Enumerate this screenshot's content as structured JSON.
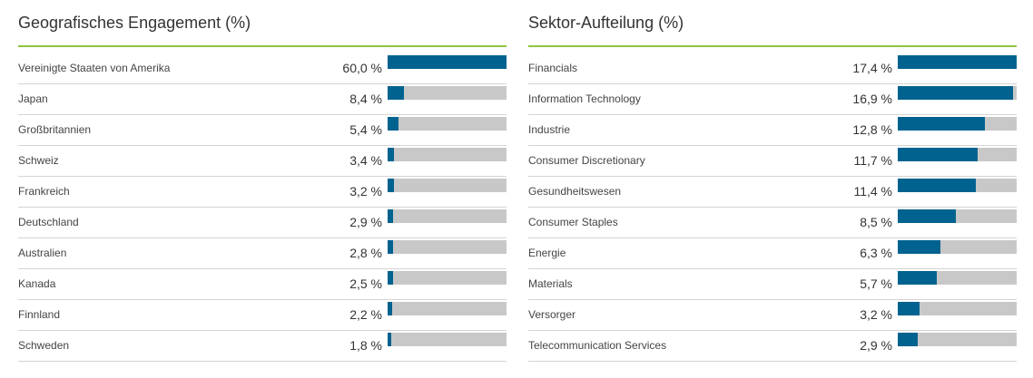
{
  "chart_data": [
    {
      "type": "bar",
      "title": "Geografisches Engagement (%)",
      "max": 60.0,
      "categories": [
        "Vereinigte Staaten von Amerika",
        "Japan",
        "Großbritannien",
        "Schweiz",
        "Frankreich",
        "Deutschland",
        "Australien",
        "Kanada",
        "Finnland",
        "Schweden"
      ],
      "values": [
        60.0,
        8.4,
        5.4,
        3.4,
        3.2,
        2.9,
        2.8,
        2.5,
        2.2,
        1.8
      ],
      "value_labels": [
        "60,0 %",
        "8,4 %",
        "5,4 %",
        "3,4 %",
        "3,2 %",
        "2,9 %",
        "2,8 %",
        "2,5 %",
        "2,2 %",
        "1,8 %"
      ]
    },
    {
      "type": "bar",
      "title": "Sektor-Aufteilung (%)",
      "max": 17.4,
      "categories": [
        "Financials",
        "Information Technology",
        "Industrie",
        "Consumer Discretionary",
        "Gesundheitswesen",
        "Consumer Staples",
        "Energie",
        "Materials",
        "Versorger",
        "Telecommunication Services"
      ],
      "values": [
        17.4,
        16.9,
        12.8,
        11.7,
        11.4,
        8.5,
        6.3,
        5.7,
        3.2,
        2.9
      ],
      "value_labels": [
        "17,4 %",
        "16,9 %",
        "12,8 %",
        "11,7 %",
        "11,4 %",
        "8,5 %",
        "6,3 %",
        "5,7 %",
        "3,2 %",
        "2,9 %"
      ]
    }
  ],
  "colors": {
    "bar": "#00628f",
    "track": "#c8c8c8",
    "accent_line": "#8dc63f"
  }
}
